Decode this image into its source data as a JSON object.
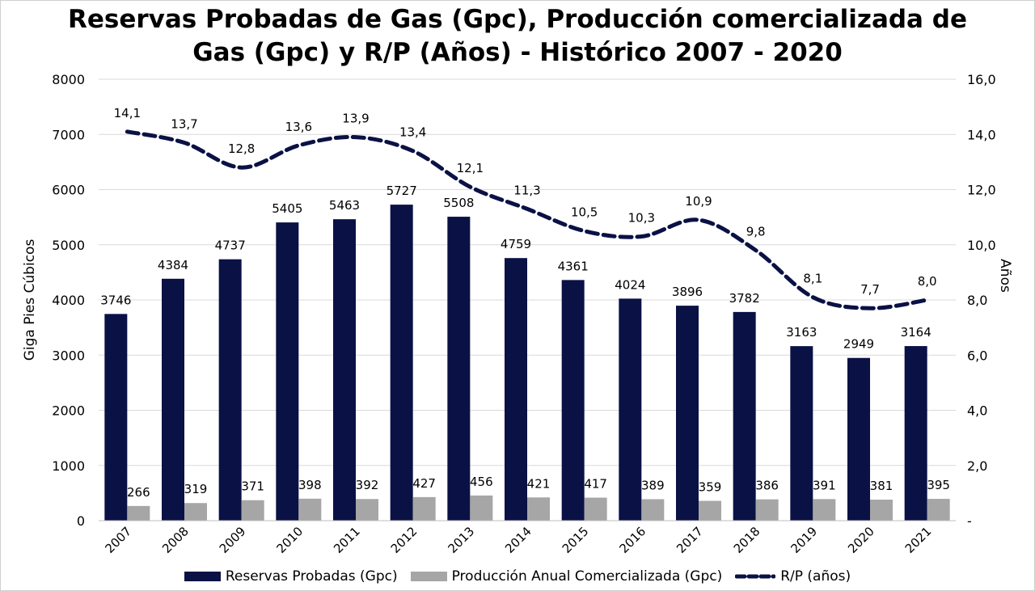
{
  "chart_data": {
    "type": "bar",
    "title_line1": "Reservas Probadas de Gas (Gpc), Producción comercializada de",
    "title_line2": "Gas (Gpc) y R/P (Años) - Histórico 2007 - 2020",
    "ylabel": "Giga Pies Cúbicos",
    "y2label": "Años",
    "ylim": [
      0,
      8000
    ],
    "y2lim": [
      0,
      16
    ],
    "yticks": [
      "0",
      "1000",
      "2000",
      "3000",
      "4000",
      "5000",
      "6000",
      "7000",
      "8000"
    ],
    "y2ticks": [
      "-",
      "2,0",
      "4,0",
      "6,0",
      "8,0",
      "10,0",
      "12,0",
      "14,0",
      "16,0"
    ],
    "grid": true,
    "legend_position": "bottom",
    "categories": [
      "2007",
      "2008",
      "2009",
      "2010",
      "2011",
      "2012",
      "2013",
      "2014",
      "2015",
      "2016",
      "2017",
      "2018",
      "2019",
      "2020",
      "2021"
    ],
    "series": [
      {
        "name": "Reservas Probadas (Gpc)",
        "type": "bar",
        "axis": "left",
        "color": "#0a1145",
        "values": [
          3746,
          4384,
          4737,
          5405,
          5463,
          5727,
          5508,
          4759,
          4361,
          4024,
          3896,
          3782,
          3163,
          2949,
          3164
        ],
        "labels": [
          "3746",
          "4384",
          "4737",
          "5405",
          "5463",
          "5727",
          "5508",
          "4759",
          "4361",
          "4024",
          "3896",
          "3782",
          "3163",
          "2949",
          "3164"
        ]
      },
      {
        "name": "Producción Anual Comercializada (Gpc)",
        "type": "bar",
        "axis": "left",
        "color": "#a6a6a6",
        "values": [
          266,
          319,
          371,
          398,
          392,
          427,
          456,
          421,
          417,
          389,
          359,
          386,
          391,
          381,
          395
        ],
        "labels": [
          "266",
          "319",
          "371",
          "398",
          "392",
          "427",
          "456",
          "421",
          "417",
          "389",
          "359",
          "386",
          "391",
          "381",
          "395"
        ]
      },
      {
        "name": "R/P (años)",
        "type": "line",
        "style": "dashed",
        "axis": "right",
        "color": "#0a1145",
        "values": [
          14.1,
          13.7,
          12.8,
          13.6,
          13.9,
          13.4,
          12.1,
          11.3,
          10.5,
          10.3,
          10.9,
          9.8,
          8.1,
          7.7,
          8.0
        ],
        "labels": [
          "14,1",
          "13,7",
          "12,8",
          "13,6",
          "13,9",
          "13,4",
          "12,1",
          "11,3",
          "10,5",
          "10,3",
          "10,9",
          "9,8",
          "8,1",
          "7,7",
          "8,0"
        ]
      }
    ]
  }
}
